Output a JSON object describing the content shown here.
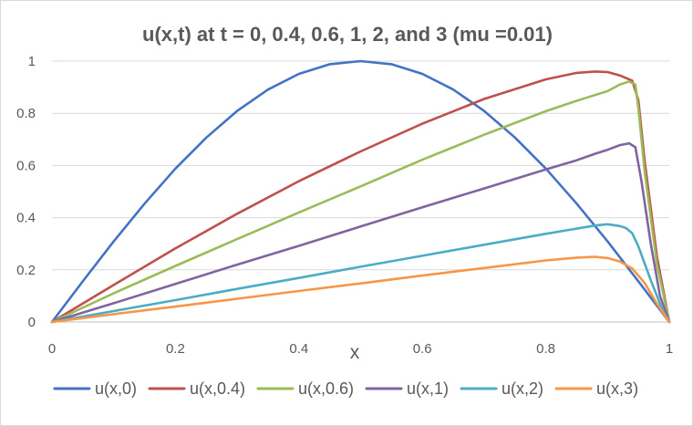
{
  "chart_data": {
    "type": "line",
    "title": "u(x,t) at t = 0, 0.4, 0.6, 1, 2, and 3  (mu =0.01)",
    "xlabel": "x",
    "ylabel": "",
    "xlim": [
      0,
      1
    ],
    "ylim": [
      0,
      1
    ],
    "x_ticks": [
      "0",
      "0.2",
      "0.4",
      "0.6",
      "0.8",
      "1"
    ],
    "y_ticks": [
      "0",
      "0.2",
      "0.4",
      "0.6",
      "0.8",
      "1"
    ],
    "grid": "horizontal",
    "legend_position": "bottom",
    "series": [
      {
        "name": "u(x,0)",
        "color": "#4472C4",
        "x": [
          0,
          0.05,
          0.1,
          0.15,
          0.2,
          0.25,
          0.3,
          0.35,
          0.4,
          0.45,
          0.5,
          0.55,
          0.6,
          0.65,
          0.7,
          0.75,
          0.8,
          0.85,
          0.9,
          0.95,
          1.0
        ],
        "y": [
          0,
          0.156,
          0.309,
          0.454,
          0.588,
          0.707,
          0.809,
          0.891,
          0.951,
          0.988,
          1.0,
          0.988,
          0.951,
          0.891,
          0.809,
          0.707,
          0.588,
          0.454,
          0.309,
          0.156,
          0
        ]
      },
      {
        "name": "u(x,0.4)",
        "color": "#C0504D",
        "x": [
          0,
          0.1,
          0.2,
          0.3,
          0.4,
          0.5,
          0.6,
          0.7,
          0.8,
          0.85,
          0.88,
          0.9,
          0.92,
          0.94,
          0.95,
          0.96,
          0.98,
          1.0
        ],
        "y": [
          0,
          0.142,
          0.282,
          0.415,
          0.54,
          0.654,
          0.76,
          0.855,
          0.93,
          0.955,
          0.96,
          0.958,
          0.945,
          0.925,
          0.85,
          0.62,
          0.25,
          0
        ]
      },
      {
        "name": "u(x,0.6)",
        "color": "#9BBB59",
        "x": [
          0,
          0.1,
          0.2,
          0.3,
          0.4,
          0.5,
          0.6,
          0.7,
          0.8,
          0.85,
          0.9,
          0.92,
          0.935,
          0.945,
          0.95,
          0.96,
          0.98,
          1.0
        ],
        "y": [
          0,
          0.11,
          0.215,
          0.318,
          0.42,
          0.52,
          0.622,
          0.718,
          0.808,
          0.848,
          0.885,
          0.91,
          0.922,
          0.91,
          0.82,
          0.58,
          0.22,
          0
        ]
      },
      {
        "name": "u(x,1)",
        "color": "#8064A2",
        "x": [
          0,
          0.1,
          0.2,
          0.3,
          0.4,
          0.5,
          0.6,
          0.7,
          0.8,
          0.85,
          0.88,
          0.9,
          0.92,
          0.935,
          0.945,
          0.955,
          0.97,
          0.985,
          1.0
        ],
        "y": [
          0,
          0.072,
          0.146,
          0.22,
          0.292,
          0.366,
          0.44,
          0.512,
          0.585,
          0.62,
          0.645,
          0.66,
          0.678,
          0.685,
          0.67,
          0.54,
          0.3,
          0.1,
          0
        ]
      },
      {
        "name": "u(x,2)",
        "color": "#4BACC6",
        "x": [
          0,
          0.1,
          0.2,
          0.3,
          0.4,
          0.5,
          0.6,
          0.7,
          0.8,
          0.85,
          0.88,
          0.9,
          0.92,
          0.93,
          0.94,
          0.95,
          0.97,
          0.99,
          1.0
        ],
        "y": [
          0,
          0.042,
          0.084,
          0.127,
          0.169,
          0.212,
          0.254,
          0.296,
          0.338,
          0.358,
          0.37,
          0.375,
          0.368,
          0.36,
          0.34,
          0.29,
          0.16,
          0.04,
          0
        ]
      },
      {
        "name": "u(x,3)",
        "color": "#F79646",
        "x": [
          0,
          0.1,
          0.2,
          0.3,
          0.4,
          0.5,
          0.6,
          0.7,
          0.8,
          0.85,
          0.88,
          0.9,
          0.92,
          0.94,
          0.96,
          0.98,
          1.0
        ],
        "y": [
          0,
          0.03,
          0.059,
          0.089,
          0.119,
          0.148,
          0.178,
          0.207,
          0.236,
          0.247,
          0.25,
          0.245,
          0.232,
          0.205,
          0.15,
          0.07,
          0
        ]
      }
    ]
  }
}
